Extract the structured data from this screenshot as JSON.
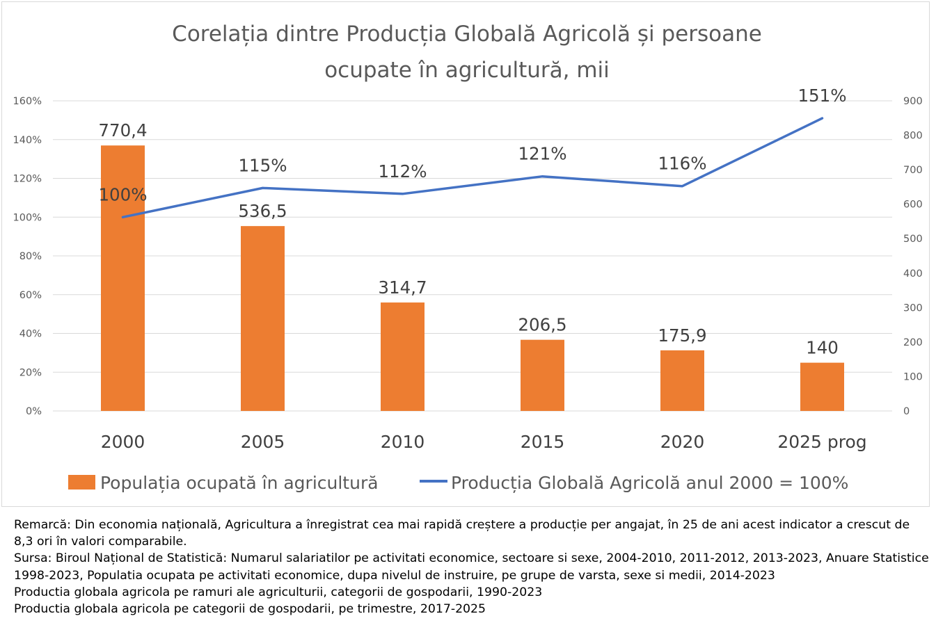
{
  "chart_data": {
    "type": "bar+line",
    "title_lines": [
      "Corelația dintre Producția Globală Agricolă și persoane",
      "ocupate în agricultură, mii"
    ],
    "categories": [
      "2000",
      "2005",
      "2010",
      "2015",
      "2020",
      "2025 prog"
    ],
    "series": [
      {
        "name": "Populația ocupată în agricultură",
        "type": "bar",
        "axis": "right",
        "color": "#ED7D31",
        "values": [
          770.4,
          536.5,
          314.7,
          206.5,
          175.9,
          140
        ],
        "labels": [
          "770,4",
          "536,5",
          "314,7",
          "206,5",
          "175,9",
          "140"
        ]
      },
      {
        "name": "Producția Globală Agricolă anul 2000 = 100%",
        "type": "line",
        "axis": "left",
        "color": "#4472C4",
        "values": [
          100,
          115,
          112,
          121,
          116,
          151
        ],
        "labels": [
          "100%",
          "115%",
          "112%",
          "121%",
          "116%",
          "151%"
        ]
      }
    ],
    "y_left": {
      "ylim": [
        0,
        160
      ],
      "ticks": [
        0,
        20,
        40,
        60,
        80,
        100,
        120,
        140,
        160
      ],
      "tick_labels": [
        "0%",
        "20%",
        "40%",
        "60%",
        "80%",
        "100%",
        "120%",
        "140%",
        "160%"
      ]
    },
    "y_right": {
      "ylim": [
        0,
        900
      ],
      "ticks": [
        0,
        100,
        200,
        300,
        400,
        500,
        600,
        700,
        800,
        900
      ],
      "tick_labels": [
        "0",
        "100",
        "200",
        "300",
        "400",
        "500",
        "600",
        "700",
        "800",
        "900"
      ]
    },
    "grid": true,
    "legend_position": "bottom"
  },
  "notes": {
    "remark": "Remarcă: Din economia națională, Agricultura a înregistrat cea mai rapidă creștere a producție per angajat, în 25 de ani acest indicator a crescut de 8,3 ori în valori comparabile.",
    "source_1": "Sursa: Biroul Național de Statistică: Numarul salariatilor pe activitati economice, sectoare si sexe, 2004-2010, 2011-2012, 2013-2023, Anuare Statistice 1998-2023, Populatia ocupata pe activitati economice, dupa nivelul de instruire, pe grupe de varsta, sexe si medii, 2014-2023",
    "source_2": "Productia globala agricola pe ramuri ale agriculturii, categorii de gospodarii, 1990-2023",
    "source_3": "Productia globala agricola pe categorii de gospodarii, pe trimestre, 2017-2025"
  }
}
